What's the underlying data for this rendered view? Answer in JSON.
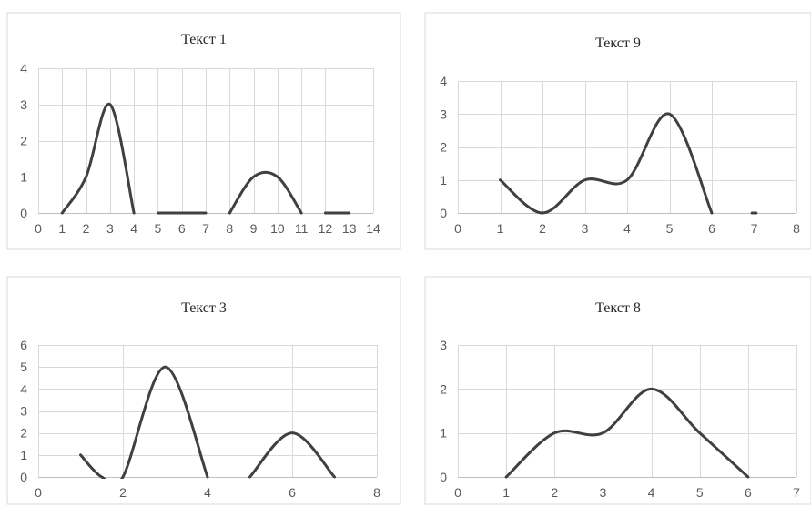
{
  "chart_data": [
    {
      "type": "line",
      "title": "Текст 1",
      "xlim": [
        0,
        14
      ],
      "ylim": [
        0,
        4
      ],
      "xticks": [
        0,
        1,
        2,
        3,
        4,
        5,
        6,
        7,
        8,
        9,
        10,
        11,
        12,
        13,
        14
      ],
      "yticks": [
        0,
        1,
        2,
        3,
        4
      ],
      "grid": true,
      "smooth": true,
      "series": [
        {
          "x": [
            1,
            2,
            3,
            4
          ],
          "y": [
            0,
            1,
            3,
            0
          ]
        },
        {
          "x": [
            5,
            6,
            7
          ],
          "y": [
            0,
            0,
            0
          ]
        },
        {
          "x": [
            8,
            9,
            10,
            11
          ],
          "y": [
            0,
            1,
            1,
            0
          ]
        },
        {
          "x": [
            12,
            13
          ],
          "y": [
            0,
            0
          ]
        }
      ]
    },
    {
      "type": "line",
      "title": "Текст 9",
      "xlim": [
        0,
        8
      ],
      "ylim": [
        0,
        4
      ],
      "xticks": [
        0,
        1,
        2,
        3,
        4,
        5,
        6,
        7,
        8
      ],
      "yticks": [
        0,
        1,
        2,
        3,
        4
      ],
      "grid": true,
      "smooth": true,
      "series": [
        {
          "x": [
            1,
            2,
            3,
            4,
            5,
            6
          ],
          "y": [
            1,
            0,
            1,
            1,
            3,
            0
          ]
        },
        {
          "x": [
            6.95,
            7.05
          ],
          "y": [
            0,
            0
          ]
        }
      ]
    },
    {
      "type": "line",
      "title": "Текст 3",
      "xlim": [
        0,
        8
      ],
      "ylim": [
        0,
        6
      ],
      "xticks": [
        0,
        2,
        4,
        6,
        8
      ],
      "yticks": [
        0,
        1,
        2,
        3,
        4,
        5,
        6
      ],
      "grid": true,
      "smooth": true,
      "series": [
        {
          "x": [
            1,
            1.5,
            2,
            3,
            4
          ],
          "y": [
            1,
            0,
            0,
            5,
            0
          ]
        },
        {
          "x": [
            5,
            6,
            7
          ],
          "y": [
            0,
            2,
            0
          ]
        }
      ]
    },
    {
      "type": "line",
      "title": "Текст 8",
      "xlim": [
        0,
        7
      ],
      "ylim": [
        0,
        3
      ],
      "xticks": [
        0,
        1,
        2,
        3,
        4,
        5,
        6,
        7
      ],
      "yticks": [
        0,
        1,
        2,
        3
      ],
      "grid": true,
      "smooth": true,
      "series": [
        {
          "x": [
            1,
            2,
            3,
            4,
            5,
            6
          ],
          "y": [
            0,
            1,
            1,
            2,
            1,
            0
          ]
        }
      ]
    }
  ]
}
